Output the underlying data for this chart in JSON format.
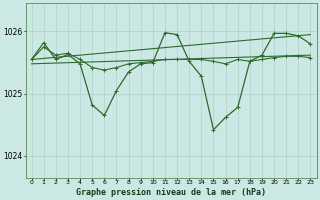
{
  "bg_color": "#cce8e4",
  "grid_color": "#b0d0cc",
  "line_color": "#2d6a2d",
  "spine_color": "#5a8a5a",
  "title": "Graphe pression niveau de la mer (hPa)",
  "title_fontsize": 6.0,
  "title_color": "#1a3a1a",
  "xlim": [
    -0.5,
    23.5
  ],
  "ylim": [
    1023.65,
    1026.45
  ],
  "yticks": [
    1024,
    1025,
    1026
  ],
  "ytick_fontsize": 5.5,
  "xticks": [
    0,
    1,
    2,
    3,
    4,
    5,
    6,
    7,
    8,
    9,
    10,
    11,
    12,
    13,
    14,
    15,
    16,
    17,
    18,
    19,
    20,
    21,
    22,
    23
  ],
  "xtick_fontsize": 4.5,
  "line_main_x": [
    0,
    1,
    2,
    3,
    4,
    5,
    6,
    7,
    8,
    9,
    10,
    11,
    12,
    13,
    14,
    15,
    16,
    17,
    18,
    19,
    20,
    21,
    22,
    23
  ],
  "line_main_y": [
    1025.55,
    1025.82,
    1025.55,
    1025.63,
    1025.48,
    1024.82,
    1024.65,
    1025.05,
    1025.35,
    1025.48,
    1025.5,
    1025.98,
    1025.95,
    1025.52,
    1025.28,
    1024.42,
    1024.62,
    1024.78,
    1025.52,
    1025.62,
    1025.97,
    1025.97,
    1025.93,
    1025.8
  ],
  "line_smooth_x": [
    0,
    1,
    2,
    3,
    4,
    5,
    6,
    7,
    8,
    9,
    10,
    11,
    12,
    13,
    14,
    15,
    16,
    17,
    18,
    19,
    20,
    21,
    22,
    23
  ],
  "line_smooth_y": [
    1025.55,
    1025.75,
    1025.62,
    1025.65,
    1025.55,
    1025.42,
    1025.38,
    1025.42,
    1025.48,
    1025.5,
    1025.52,
    1025.55,
    1025.55,
    1025.55,
    1025.55,
    1025.52,
    1025.48,
    1025.55,
    1025.52,
    1025.55,
    1025.58,
    1025.6,
    1025.6,
    1025.58
  ],
  "trend1_x": [
    0,
    23
  ],
  "trend1_y": [
    1025.48,
    1025.62
  ],
  "trend2_x": [
    0,
    23
  ],
  "trend2_y": [
    1025.55,
    1025.95
  ],
  "lw_main": 0.9,
  "lw_smooth": 0.8,
  "lw_trend": 0.8,
  "marker_size": 2.5,
  "marker_ew": 0.7
}
